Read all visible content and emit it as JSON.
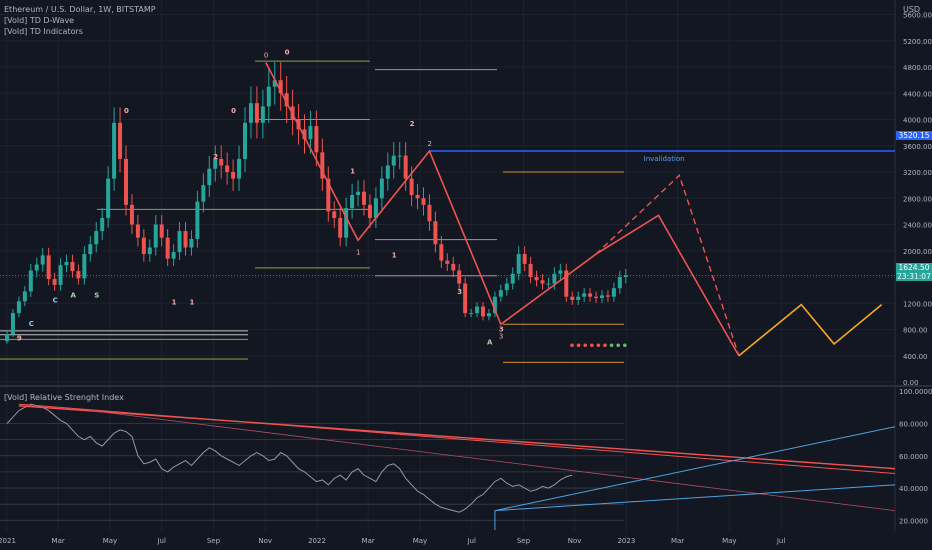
{
  "header": {
    "symbol_line": "Ethereum / U.S. Dollar, 1W, BITSTAMP",
    "indicator_1": "[Vold] TD D-Wave",
    "indicator_2": "[Vold] TD Indicators",
    "currency": "USD"
  },
  "price_tag": {
    "price": "1624.50",
    "countdown": "23:31:07",
    "invalidation_price": "3520.15"
  },
  "colors": {
    "up": "#26a69a",
    "down": "#ef5350",
    "wave": "#ef5350",
    "projection": "#f5a623",
    "invalidation": "#2962ff",
    "rsi": "#9598a1"
  },
  "chart_data": [
    {
      "type": "candlestick",
      "title": "Ethereum / U.S. Dollar, 1W, BITSTAMP",
      "y_unit": "USD",
      "y_ticks": [
        0,
        400,
        800,
        1200,
        1600,
        2000,
        2400,
        2800,
        3200,
        3600,
        4000,
        4400,
        4800,
        5200,
        5600
      ],
      "ylim": [
        0,
        5700
      ],
      "x_tick_labels": [
        "2021",
        "Mar",
        "May",
        "Jul",
        "Sep",
        "Nov",
        "2022",
        "Mar",
        "May",
        "Jul",
        "Sep",
        "Nov",
        "2023",
        "Mar",
        "May",
        "Jul"
      ],
      "x_tick_weeks": [
        0,
        8.6,
        17.3,
        26,
        34.7,
        43.4,
        52.1,
        60.7,
        69.4,
        78.1,
        86.8,
        95.4,
        104.1,
        112.7,
        121.4,
        130.1
      ],
      "closes": [
        730,
        1050,
        1230,
        1380,
        1700,
        1790,
        1930,
        1570,
        1480,
        1780,
        1830,
        1690,
        1580,
        1950,
        2100,
        2300,
        2500,
        3100,
        3950,
        3400,
        2700,
        2400,
        2200,
        1950,
        2050,
        2400,
        2200,
        1880,
        1980,
        2300,
        2050,
        2180,
        2750,
        3000,
        3250,
        3400,
        3300,
        3200,
        3100,
        3400,
        3950,
        4250,
        3950,
        4200,
        4500,
        4600,
        4400,
        4200,
        4000,
        3850,
        3700,
        3900,
        3500,
        3100,
        2600,
        2500,
        2200,
        2650,
        2850,
        2900,
        2700,
        2500,
        2800,
        3100,
        3300,
        3450,
        3450,
        3100,
        2850,
        2800,
        2700,
        2450,
        2100,
        1850,
        1800,
        1700,
        1500,
        1050,
        1050,
        1150,
        1000,
        1050,
        1300,
        1400,
        1500,
        1650,
        1950,
        1800,
        1600,
        1550,
        1500,
        1500,
        1650,
        1700,
        1300,
        1250,
        1300,
        1350,
        1300,
        1280,
        1320,
        1300,
        1430,
        1600,
        1625
      ],
      "wave_points": [
        {
          "week": 43.5,
          "price": 4870,
          "label": "0"
        },
        {
          "week": 59,
          "price": 2160,
          "label": "1"
        },
        {
          "week": 71,
          "price": 3520,
          "label": "2"
        },
        {
          "week": 83,
          "price": 880,
          "label": "3"
        },
        {
          "week": 99,
          "price": 1950,
          "label": ""
        },
        {
          "week": 109.5,
          "price": 2540,
          "label": ""
        },
        {
          "week": 123,
          "price": 400,
          "label": ""
        }
      ],
      "dashed_projection": [
        {
          "week": 99,
          "price": 1950
        },
        {
          "week": 113,
          "price": 3150
        },
        {
          "week": 123,
          "price": 400
        }
      ],
      "orange_projection": [
        {
          "week": 123,
          "price": 400
        },
        {
          "week": 133.5,
          "price": 1180
        },
        {
          "week": 139,
          "price": 580
        },
        {
          "week": 147,
          "price": 1180
        }
      ],
      "invalidation": {
        "label": "Invalidation",
        "price": 3520.15
      },
      "last_price": 1624.5,
      "td_marks": [
        {
          "week": 2,
          "price": 630,
          "text": "9"
        },
        {
          "week": 4,
          "price": 850,
          "text": "C"
        },
        {
          "week": 8,
          "price": 1210,
          "text": "C"
        },
        {
          "week": 11,
          "price": 1290,
          "text": "A"
        },
        {
          "week": 15,
          "price": 1290,
          "text": "S"
        },
        {
          "week": 20,
          "price": 4100,
          "text": "0"
        },
        {
          "week": 28,
          "price": 1180,
          "text": "1"
        },
        {
          "week": 31,
          "price": 1180,
          "text": "1"
        },
        {
          "week": 35,
          "price": 3400,
          "text": "2"
        },
        {
          "week": 38,
          "price": 4100,
          "text": "0"
        },
        {
          "week": 47,
          "price": 4990,
          "text": "0"
        },
        {
          "week": 58,
          "price": 3180,
          "text": "1"
        },
        {
          "week": 65,
          "price": 1900,
          "text": "1"
        },
        {
          "week": 68,
          "price": 3900,
          "text": "2"
        },
        {
          "week": 76,
          "price": 1340,
          "text": "3"
        },
        {
          "week": 81,
          "price": 570,
          "text": "A"
        },
        {
          "week": 83,
          "price": 770,
          "text": "3"
        }
      ]
    },
    {
      "type": "line",
      "title": "[Vold] Relative Strenght Index",
      "y_ticks": [
        20,
        40,
        60,
        80,
        100
      ],
      "y_tick_labels": [
        "20.0000",
        "40.0000",
        "60.0000",
        "80.0000",
        "100.0000"
      ],
      "ylim": [
        14,
        102
      ],
      "values": [
        80,
        84,
        88,
        90,
        92,
        91,
        90,
        88,
        85,
        82,
        80,
        76,
        72,
        70,
        72,
        68,
        66,
        70,
        74,
        76,
        75,
        72,
        60,
        55,
        56,
        58,
        52,
        50,
        53,
        55,
        57,
        54,
        58,
        62,
        65,
        63,
        60,
        58,
        56,
        54,
        57,
        60,
        62,
        60,
        57,
        58,
        62,
        60,
        56,
        52,
        50,
        47,
        44,
        45,
        42,
        46,
        48,
        45,
        50,
        52,
        48,
        46,
        44,
        50,
        54,
        55,
        52,
        46,
        42,
        38,
        36,
        33,
        30,
        28,
        27,
        26,
        25,
        27,
        30,
        34,
        36,
        40,
        44,
        46,
        43,
        41,
        42,
        40,
        38,
        39,
        41,
        40,
        42,
        45,
        47,
        48
      ],
      "hlines": [
        20,
        30,
        40,
        50,
        60,
        70,
        80
      ]
    }
  ]
}
